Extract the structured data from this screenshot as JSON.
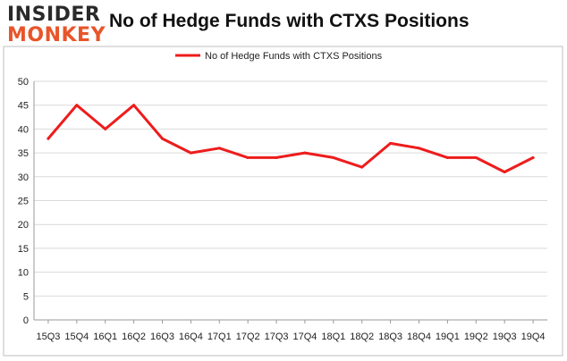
{
  "header": {
    "logo_top": "INSIDER",
    "logo_bottom": "MONKEY",
    "title": "No of Hedge Funds with CTXS Positions"
  },
  "colors": {
    "line": "#ee1c1c",
    "grid": "#d9d9d9",
    "frame": "#bfbfbf",
    "logo_accent": "#e8552a"
  },
  "chart_data": {
    "type": "line",
    "title": "No of Hedge Funds with CTXS Positions",
    "xlabel": "",
    "ylabel": "",
    "categories": [
      "15Q3",
      "15Q4",
      "16Q1",
      "16Q2",
      "16Q3",
      "16Q4",
      "17Q1",
      "17Q2",
      "17Q3",
      "17Q4",
      "18Q1",
      "18Q2",
      "18Q3",
      "18Q4",
      "19Q1",
      "19Q2",
      "19Q3",
      "19Q4"
    ],
    "series": [
      {
        "name": "No of Hedge Funds with CTXS Positions",
        "values": [
          38,
          45,
          40,
          45,
          38,
          35,
          36,
          34,
          34,
          35,
          34,
          32,
          37,
          36,
          34,
          34,
          31,
          34
        ]
      }
    ],
    "ylim": [
      0,
      50
    ],
    "yticks": [
      0,
      5,
      10,
      15,
      20,
      25,
      30,
      35,
      40,
      45,
      50
    ],
    "grid": true,
    "legend": "top-center"
  }
}
